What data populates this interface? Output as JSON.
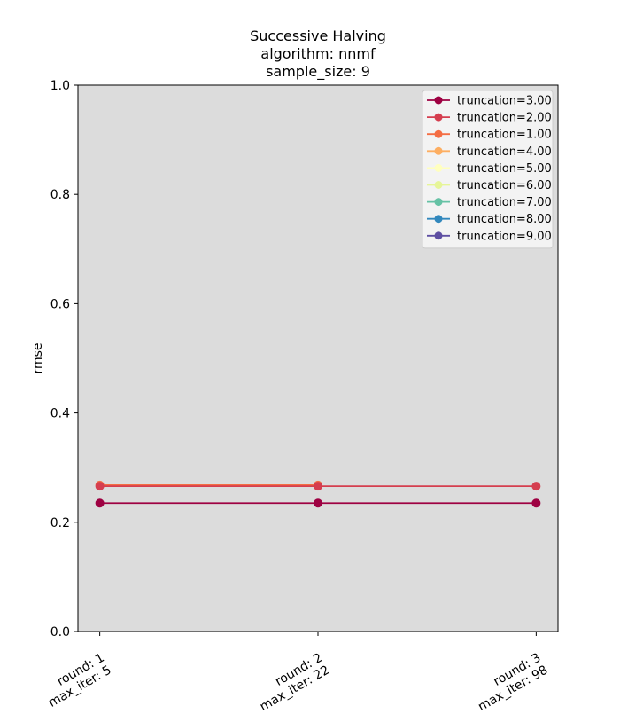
{
  "chart_data": {
    "type": "line",
    "title_lines": [
      "Successive Halving",
      "algorithm: nnmf",
      "sample_size: 9"
    ],
    "ylabel": "rmse",
    "xlabel": "",
    "ylim": [
      0.0,
      1.0
    ],
    "yticks": [
      0.0,
      0.2,
      0.4,
      0.6,
      0.8,
      1.0
    ],
    "ytick_labels": [
      "0.0",
      "0.2",
      "0.4",
      "0.6",
      "0.8",
      "1.0"
    ],
    "x": [
      1,
      2,
      3
    ],
    "x_tick_labels": [
      [
        "round: 1",
        "max_iter: 5"
      ],
      [
        "round: 2",
        "max_iter: 22"
      ],
      [
        "round: 3",
        "max_iter: 98"
      ]
    ],
    "grid": false,
    "legend_position": "top-right",
    "plot_background": "#dcdcdc",
    "series": [
      {
        "name": "truncation=3.00",
        "color": "#9e0142",
        "x": [
          1,
          2,
          3
        ],
        "values": [
          0.235,
          0.235,
          0.235
        ]
      },
      {
        "name": "truncation=2.00",
        "color": "#d53e4f",
        "x": [
          1,
          2,
          3
        ],
        "values": [
          0.266,
          0.266,
          0.266
        ]
      },
      {
        "name": "truncation=1.00",
        "color": "#f46d43",
        "x": [
          1,
          2
        ],
        "values": [
          0.268,
          0.268
        ]
      },
      {
        "name": "truncation=4.00",
        "color": "#fdae61",
        "x": [],
        "values": []
      },
      {
        "name": "truncation=5.00",
        "color": "#ffffbf",
        "x": [],
        "values": []
      },
      {
        "name": "truncation=6.00",
        "color": "#e6f598",
        "x": [],
        "values": []
      },
      {
        "name": "truncation=7.00",
        "color": "#66c2a5",
        "x": [],
        "values": []
      },
      {
        "name": "truncation=8.00",
        "color": "#3288bd",
        "x": [],
        "values": []
      },
      {
        "name": "truncation=9.00",
        "color": "#5e4fa2",
        "x": [],
        "values": []
      }
    ]
  }
}
